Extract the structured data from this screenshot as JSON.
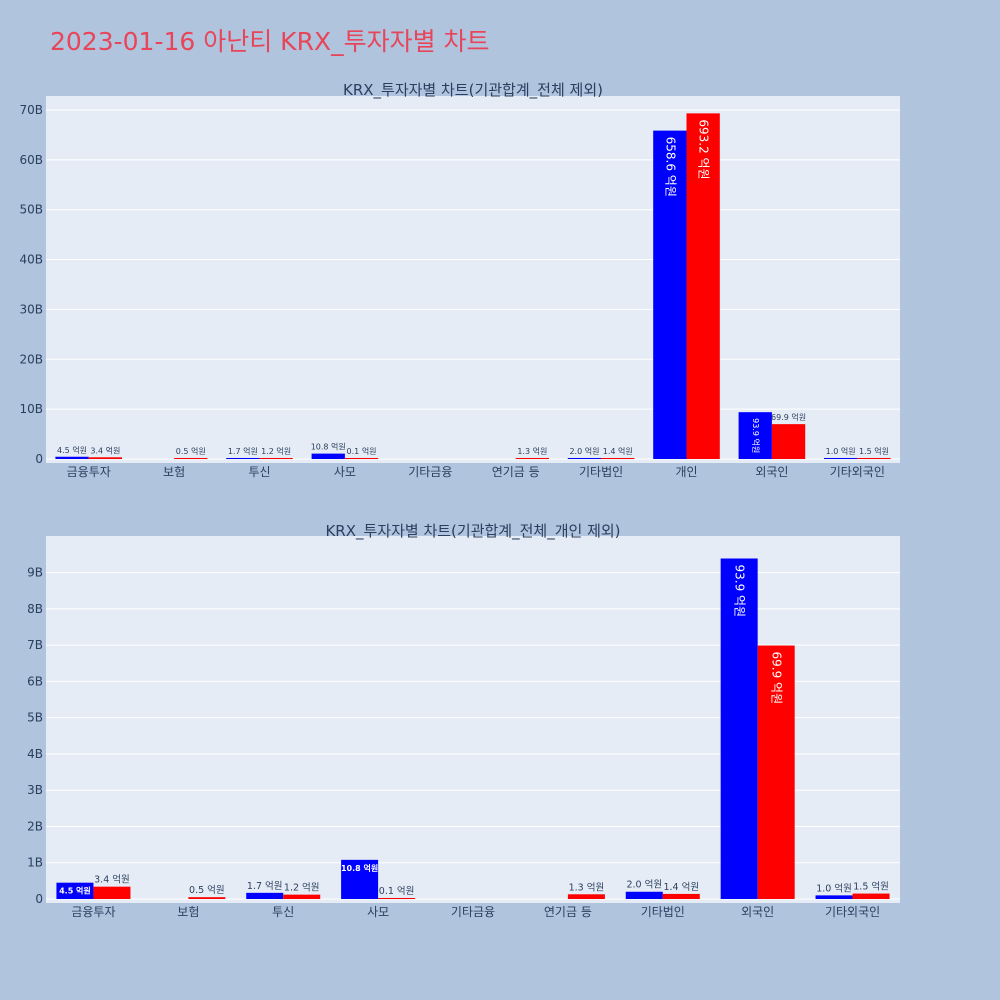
{
  "title": "2023-01-16 아난티 KRX_투자자별 차트",
  "colors": {
    "buy": "#0000ff",
    "sell": "#ff0000",
    "plot_bg": "#e5ecf6",
    "page_bg": "#b0c4de",
    "title": "#e8455a"
  },
  "chart_data": [
    {
      "type": "bar",
      "title": "KRX_투자자별 차트(기관합계_전체 제외)",
      "categories": [
        "금융투자",
        "보험",
        "투신",
        "사모",
        "기타금융",
        "연기금 등",
        "기타법인",
        "개인",
        "외국인",
        "기타외국인"
      ],
      "series": [
        {
          "values": [
            450000000,
            0,
            170000000,
            1080000000,
            0,
            0,
            200000000,
            65860000000,
            9390000000,
            100000000
          ],
          "labels": [
            "4.5 억원",
            "",
            "1.7 억원",
            "10.8 억원",
            "",
            "",
            "2.0 억원",
            "658.6 억원",
            "93.9 억원",
            "1.0 억원"
          ]
        },
        {
          "values": [
            340000000,
            50000000,
            120000000,
            10000000,
            0,
            130000000,
            140000000,
            69320000000,
            6990000000,
            150000000
          ],
          "labels": [
            "3.4 억원",
            "0.5 억원",
            "1.2 억원",
            "0.1 억원",
            "",
            "1.3 억원",
            "1.4 억원",
            "693.2 억원",
            "69.9 억원",
            "1.5 억원"
          ]
        }
      ],
      "yticks": [
        "0",
        "10B",
        "20B",
        "30B",
        "40B",
        "50B",
        "60B",
        "70B"
      ],
      "ylim": [
        0,
        72000000000
      ],
      "grid": true
    },
    {
      "type": "bar",
      "title": "KRX_투자자별 차트(기관합계_전체_개인 제외)",
      "categories": [
        "금융투자",
        "보험",
        "투신",
        "사모",
        "기타금융",
        "연기금 등",
        "기타법인",
        "외국인",
        "기타외국인"
      ],
      "series": [
        {
          "values": [
            450000000,
            0,
            170000000,
            1080000000,
            0,
            0,
            200000000,
            9390000000,
            100000000
          ],
          "labels": [
            "4.5 억원",
            "",
            "1.7 억원",
            "10.8 억원",
            "",
            "",
            "2.0 억원",
            "93.9 억원",
            "1.0 억원"
          ]
        },
        {
          "values": [
            340000000,
            50000000,
            120000000,
            10000000,
            0,
            130000000,
            140000000,
            6990000000,
            150000000
          ],
          "labels": [
            "3.4 억원",
            "0.5 억원",
            "1.2 억원",
            "0.1 억원",
            "",
            "1.3 억원",
            "1.4 억원",
            "69.9 억원",
            "1.5 억원"
          ]
        }
      ],
      "yticks": [
        "0",
        "1B",
        "2B",
        "3B",
        "4B",
        "5B",
        "6B",
        "7B",
        "8B",
        "9B"
      ],
      "ylim": [
        0,
        9900000000
      ],
      "grid": true
    }
  ]
}
